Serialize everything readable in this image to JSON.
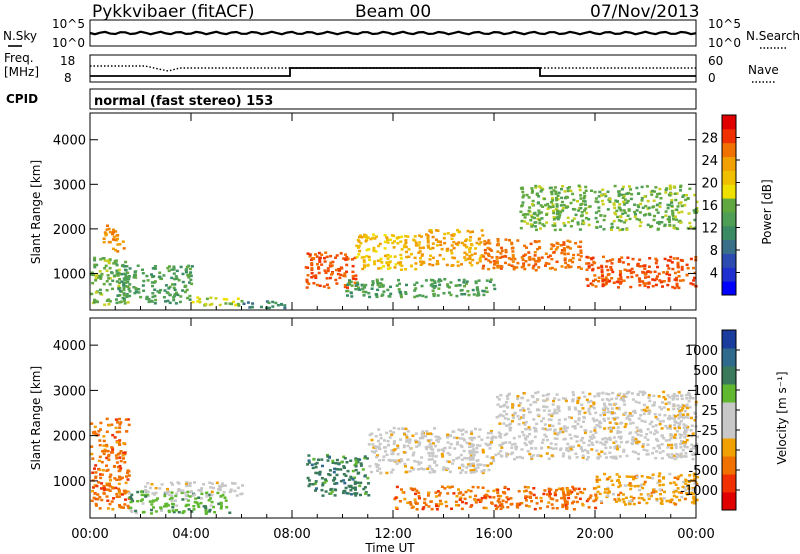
{
  "header": {
    "station": "Pykkvibaer (fitACF)",
    "beam": "Beam 00",
    "date": "07/Nov/2013"
  },
  "top_strips": {
    "nsky_label": "N.Sky",
    "nsky_ticks": [
      "10^5",
      "10^0"
    ],
    "nsearch_label": "N.Search",
    "nsearch_ticks": [
      "10^5",
      "10^0"
    ],
    "freq_label": "Freq.",
    "freq_unit": "[MHz]",
    "freq_ticks": [
      "18",
      "8"
    ],
    "nave_label": "Nave",
    "nave_ticks": [
      "60",
      "0"
    ],
    "cpid_label": "CPID",
    "cpid_text": "normal (fast stereo) 153"
  },
  "chart_data": [
    {
      "type": "heatmap",
      "name": "power",
      "ylabel": "Slant Range [km]",
      "ylim": [
        180,
        4600
      ],
      "yticks": [
        "1000",
        "2000",
        "3000",
        "4000"
      ],
      "ytick_values": [
        1000,
        2000,
        3000,
        4000
      ],
      "xlim": [
        0,
        24
      ],
      "xticks": [
        "00:00",
        "04:00",
        "08:00",
        "12:00",
        "16:00",
        "20:00",
        "00:00"
      ],
      "xtick_values": [
        0,
        4,
        8,
        12,
        16,
        20,
        24
      ],
      "colorbar_label": "Power [dB]",
      "colorbar_ticks": [
        "28",
        "24",
        "20",
        "16",
        "12",
        "8",
        "4"
      ],
      "colorbar_range": [
        0,
        30
      ],
      "colorbar_colors": [
        "#0000ff",
        "#2c4bb0",
        "#3a8a64",
        "#4e9e55",
        "#f0e000",
        "#f0a000",
        "#f07000",
        "#f03000",
        "#e00000"
      ],
      "bands": [
        {
          "t": [
            0.0,
            1.5
          ],
          "r": [
            300,
            1400
          ],
          "v": 12
        },
        {
          "t": [
            0.5,
            1.3
          ],
          "r": [
            1500,
            2100
          ],
          "v": 22
        },
        {
          "t": [
            1.0,
            4.0
          ],
          "r": [
            350,
            1200
          ],
          "v": 10
        },
        {
          "t": [
            4.0,
            6.0
          ],
          "r": [
            300,
            500
          ],
          "v": 14
        },
        {
          "t": [
            6.0,
            8.0
          ],
          "r": [
            250,
            400
          ],
          "v": 8
        },
        {
          "t": [
            8.5,
            10.5
          ],
          "r": [
            700,
            1500
          ],
          "v": 26
        },
        {
          "t": [
            10.5,
            13.0
          ],
          "r": [
            1100,
            1900
          ],
          "v": 18
        },
        {
          "t": [
            13.0,
            15.5
          ],
          "r": [
            1200,
            2000
          ],
          "v": 20
        },
        {
          "t": [
            15.5,
            19.5
          ],
          "r": [
            1100,
            1800
          ],
          "v": 24
        },
        {
          "t": [
            19.5,
            24.0
          ],
          "r": [
            700,
            1400
          ],
          "v": 26
        },
        {
          "t": [
            17.0,
            24.0
          ],
          "r": [
            2000,
            3000
          ],
          "v": 12
        },
        {
          "t": [
            10.0,
            16.0
          ],
          "r": [
            500,
            900
          ],
          "v": 10
        }
      ]
    },
    {
      "type": "heatmap",
      "name": "velocity",
      "ylabel": "Slant Range [km]",
      "ylim": [
        180,
        4600
      ],
      "yticks": [
        "1000",
        "2000",
        "3000",
        "4000"
      ],
      "ytick_values": [
        1000,
        2000,
        3000,
        4000
      ],
      "xlim": [
        0,
        24
      ],
      "xticks": [
        "00:00",
        "04:00",
        "08:00",
        "12:00",
        "16:00",
        "20:00",
        "00:00"
      ],
      "xtick_values": [
        0,
        4,
        8,
        12,
        16,
        20,
        24
      ],
      "xlabel": "Time UT",
      "colorbar_label": "Velocity [m s⁻¹]",
      "colorbar_ticks": [
        "1000",
        "500",
        "100",
        "25",
        "-25",
        "-100",
        "-500",
        "-1000"
      ],
      "colorbar_colors": [
        "#1a3c9c",
        "#2f6a8c",
        "#3a7a5a",
        "#60b830",
        "#c8c8c8",
        "#c8c8c8",
        "#f0a000",
        "#f07000",
        "#f03000",
        "#e00000"
      ],
      "bands": [
        {
          "t": [
            0.0,
            1.5
          ],
          "r": [
            400,
            2400
          ],
          "v": 2
        },
        {
          "t": [
            1.5,
            5.5
          ],
          "r": [
            300,
            800
          ],
          "v": 6
        },
        {
          "t": [
            2.0,
            6.0
          ],
          "r": [
            700,
            1000
          ],
          "v": 4
        },
        {
          "t": [
            8.5,
            11.0
          ],
          "r": [
            700,
            1600
          ],
          "v": 7
        },
        {
          "t": [
            11.0,
            16.0
          ],
          "r": [
            1200,
            2200
          ],
          "v": 4
        },
        {
          "t": [
            12.0,
            20.0
          ],
          "r": [
            400,
            900
          ],
          "v": 2
        },
        {
          "t": [
            16.0,
            24.0
          ],
          "r": [
            1500,
            3000
          ],
          "v": 4
        },
        {
          "t": [
            20.0,
            24.0
          ],
          "r": [
            500,
            1200
          ],
          "v": 3
        }
      ]
    }
  ]
}
